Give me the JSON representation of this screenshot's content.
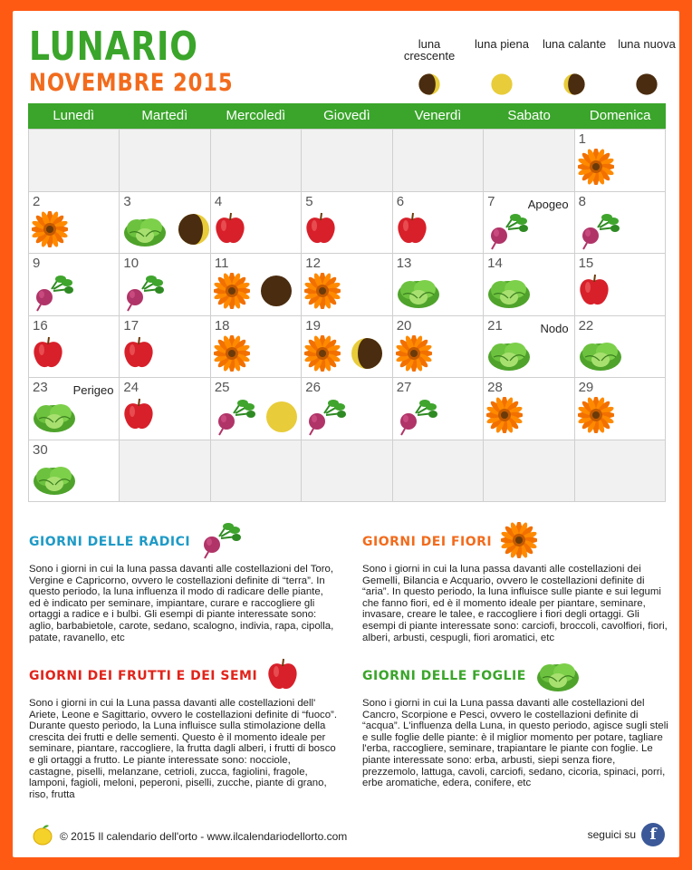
{
  "header": {
    "title": "LUNARIO",
    "subtitle": "NOVEMBRE 2015"
  },
  "legend": [
    {
      "label": "luna crescente",
      "phase": "crescente"
    },
    {
      "label": "luna piena",
      "phase": "piena"
    },
    {
      "label": "luna calante",
      "phase": "calante"
    },
    {
      "label": "luna nuova",
      "phase": "nuova"
    }
  ],
  "weekdays": [
    "Lunedì",
    "Martedì",
    "Mercoledì",
    "Giovedì",
    "Venerdì",
    "Sabato",
    "Domenica"
  ],
  "days": [
    {
      "day": "",
      "icons": []
    },
    {
      "day": "",
      "icons": []
    },
    {
      "day": "",
      "icons": []
    },
    {
      "day": "",
      "icons": []
    },
    {
      "day": "",
      "icons": []
    },
    {
      "day": "",
      "icons": []
    },
    {
      "day": "1",
      "icons": [
        "flower"
      ]
    },
    {
      "day": "2",
      "icons": [
        "flower"
      ]
    },
    {
      "day": "3",
      "icons": [
        "lettuce",
        "moon-crescente"
      ]
    },
    {
      "day": "4",
      "icons": [
        "apple"
      ]
    },
    {
      "day": "5",
      "icons": [
        "apple"
      ]
    },
    {
      "day": "6",
      "icons": [
        "apple"
      ]
    },
    {
      "day": "7",
      "icons": [
        "root"
      ],
      "note": "Apogeo"
    },
    {
      "day": "8",
      "icons": [
        "root"
      ]
    },
    {
      "day": "9",
      "icons": [
        "root"
      ]
    },
    {
      "day": "10",
      "icons": [
        "root"
      ]
    },
    {
      "day": "11",
      "icons": [
        "flower",
        "moon-nuova"
      ]
    },
    {
      "day": "12",
      "icons": [
        "flower"
      ]
    },
    {
      "day": "13",
      "icons": [
        "lettuce"
      ]
    },
    {
      "day": "14",
      "icons": [
        "lettuce"
      ]
    },
    {
      "day": "15",
      "icons": [
        "apple"
      ]
    },
    {
      "day": "16",
      "icons": [
        "apple"
      ]
    },
    {
      "day": "17",
      "icons": [
        "apple"
      ]
    },
    {
      "day": "18",
      "icons": [
        "flower"
      ]
    },
    {
      "day": "19",
      "icons": [
        "flower",
        "moon-calante"
      ]
    },
    {
      "day": "20",
      "icons": [
        "flower"
      ]
    },
    {
      "day": "21",
      "icons": [
        "lettuce"
      ],
      "note": "Nodo"
    },
    {
      "day": "22",
      "icons": [
        "lettuce"
      ]
    },
    {
      "day": "23",
      "icons": [
        "lettuce"
      ],
      "note": "Perigeo"
    },
    {
      "day": "24",
      "icons": [
        "apple"
      ]
    },
    {
      "day": "25",
      "icons": [
        "root",
        "moon-piena"
      ]
    },
    {
      "day": "26",
      "icons": [
        "root"
      ]
    },
    {
      "day": "27",
      "icons": [
        "root"
      ]
    },
    {
      "day": "28",
      "icons": [
        "flower"
      ]
    },
    {
      "day": "29",
      "icons": [
        "flower"
      ]
    },
    {
      "day": "30",
      "icons": [
        "lettuce"
      ]
    },
    {
      "day": "",
      "icons": []
    },
    {
      "day": "",
      "icons": []
    },
    {
      "day": "",
      "icons": []
    },
    {
      "day": "",
      "icons": []
    },
    {
      "day": "",
      "icons": []
    },
    {
      "day": "",
      "icons": []
    }
  ],
  "sections": {
    "radici": {
      "title": "GIORNI DELLE RADICI",
      "color": "#1e9ac6",
      "icon": "root",
      "body": "Sono i giorni in cui la luna passa davanti alle costellazioni del Toro, Vergine e Capricorno, ovvero le costellazioni definite di “terra”. In questo periodo, la luna influenza il modo di radicare delle piante, ed è indicato per seminare, impiantare, curare e raccogliere gli ortaggi a radice e i bulbi. Gli esempi di piante interessate sono: aglio, barbabietole, carote, sedano, scalogno, indivia, rapa, cipolla, patate, ravanello, etc"
    },
    "fiori": {
      "title": "GIORNI DEI FIORI",
      "color": "#f26b1c",
      "icon": "flower",
      "body": "Sono i giorni in cui la luna passa davanti alle costellazioni dei Gemelli, Bilancia e Acquario, ovvero le costellazioni definite di “aria”. In questo periodo, la luna influisce sulle piante e sui legumi che fanno fiori, ed è il momento ideale per piantare, seminare, invasare, creare le talee, e raccogliere i fiori degli ortaggi. Gli esempi di piante interessate sono: carciofi, broccoli, cavolfiori, fiori, alberi, arbusti, cespugli, fiori aromatici, etc"
    },
    "frutti": {
      "title": "GIORNI DEI FRUTTI E DEI SEMI",
      "color": "#e0241b",
      "icon": "apple",
      "body": "Sono i giorni in cui la Luna passa davanti alle costellazioni dell' Ariete, Leone e Sagittario, ovvero le costellazioni definite di “fuoco”. Durante questo periodo, la Luna influisce sulla stimolazione della crescita dei frutti e delle sementi. Questo è il momento ideale per seminare, piantare, raccogliere, la frutta dagli alberi, i frutti di bosco e gli ortaggi a frutto. Le piante interessate sono: nocciole, castagne, piselli, melanzane, cetrioli, zucca, fagiolini, fragole, lamponi, fagioli, meloni, peperoni, piselli, zucche, piante di grano, riso, frutta"
    },
    "foglie": {
      "title": "GIORNI DELLE FOGLIE",
      "color": "#3aa52a",
      "icon": "lettuce",
      "body": "Sono i giorni in cui la Luna passa davanti alle costellazioni del Cancro, Scorpione e Pesci, ovvero le costellazioni definite di “acqua”. L'influenza della Luna, in questo periodo, agisce sugli steli e sulle foglie delle piante: è il miglior momento per potare, tagliare l'erba, raccogliere, seminare, trapiantare le piante con foglie. Le piante interessate sono: erba, arbusti, siepi senza fiore, prezzemolo, lattuga, cavoli, carciofi, sedano, cicoria, spinaci, porri, erbe aromatiche, edera, conifere, etc"
    }
  },
  "footer": {
    "copyright": "© 2015 Il calendario dell'orto - www.ilcalendariodellorto.com",
    "follow": "seguici su",
    "fb_letter": "f"
  },
  "colors": {
    "accent_green": "#3aa52a",
    "accent_orange": "#f26b1c",
    "frame": "#ff5a14",
    "moon_yellow": "#e8cc3a",
    "moon_dark": "#4a2c10"
  }
}
